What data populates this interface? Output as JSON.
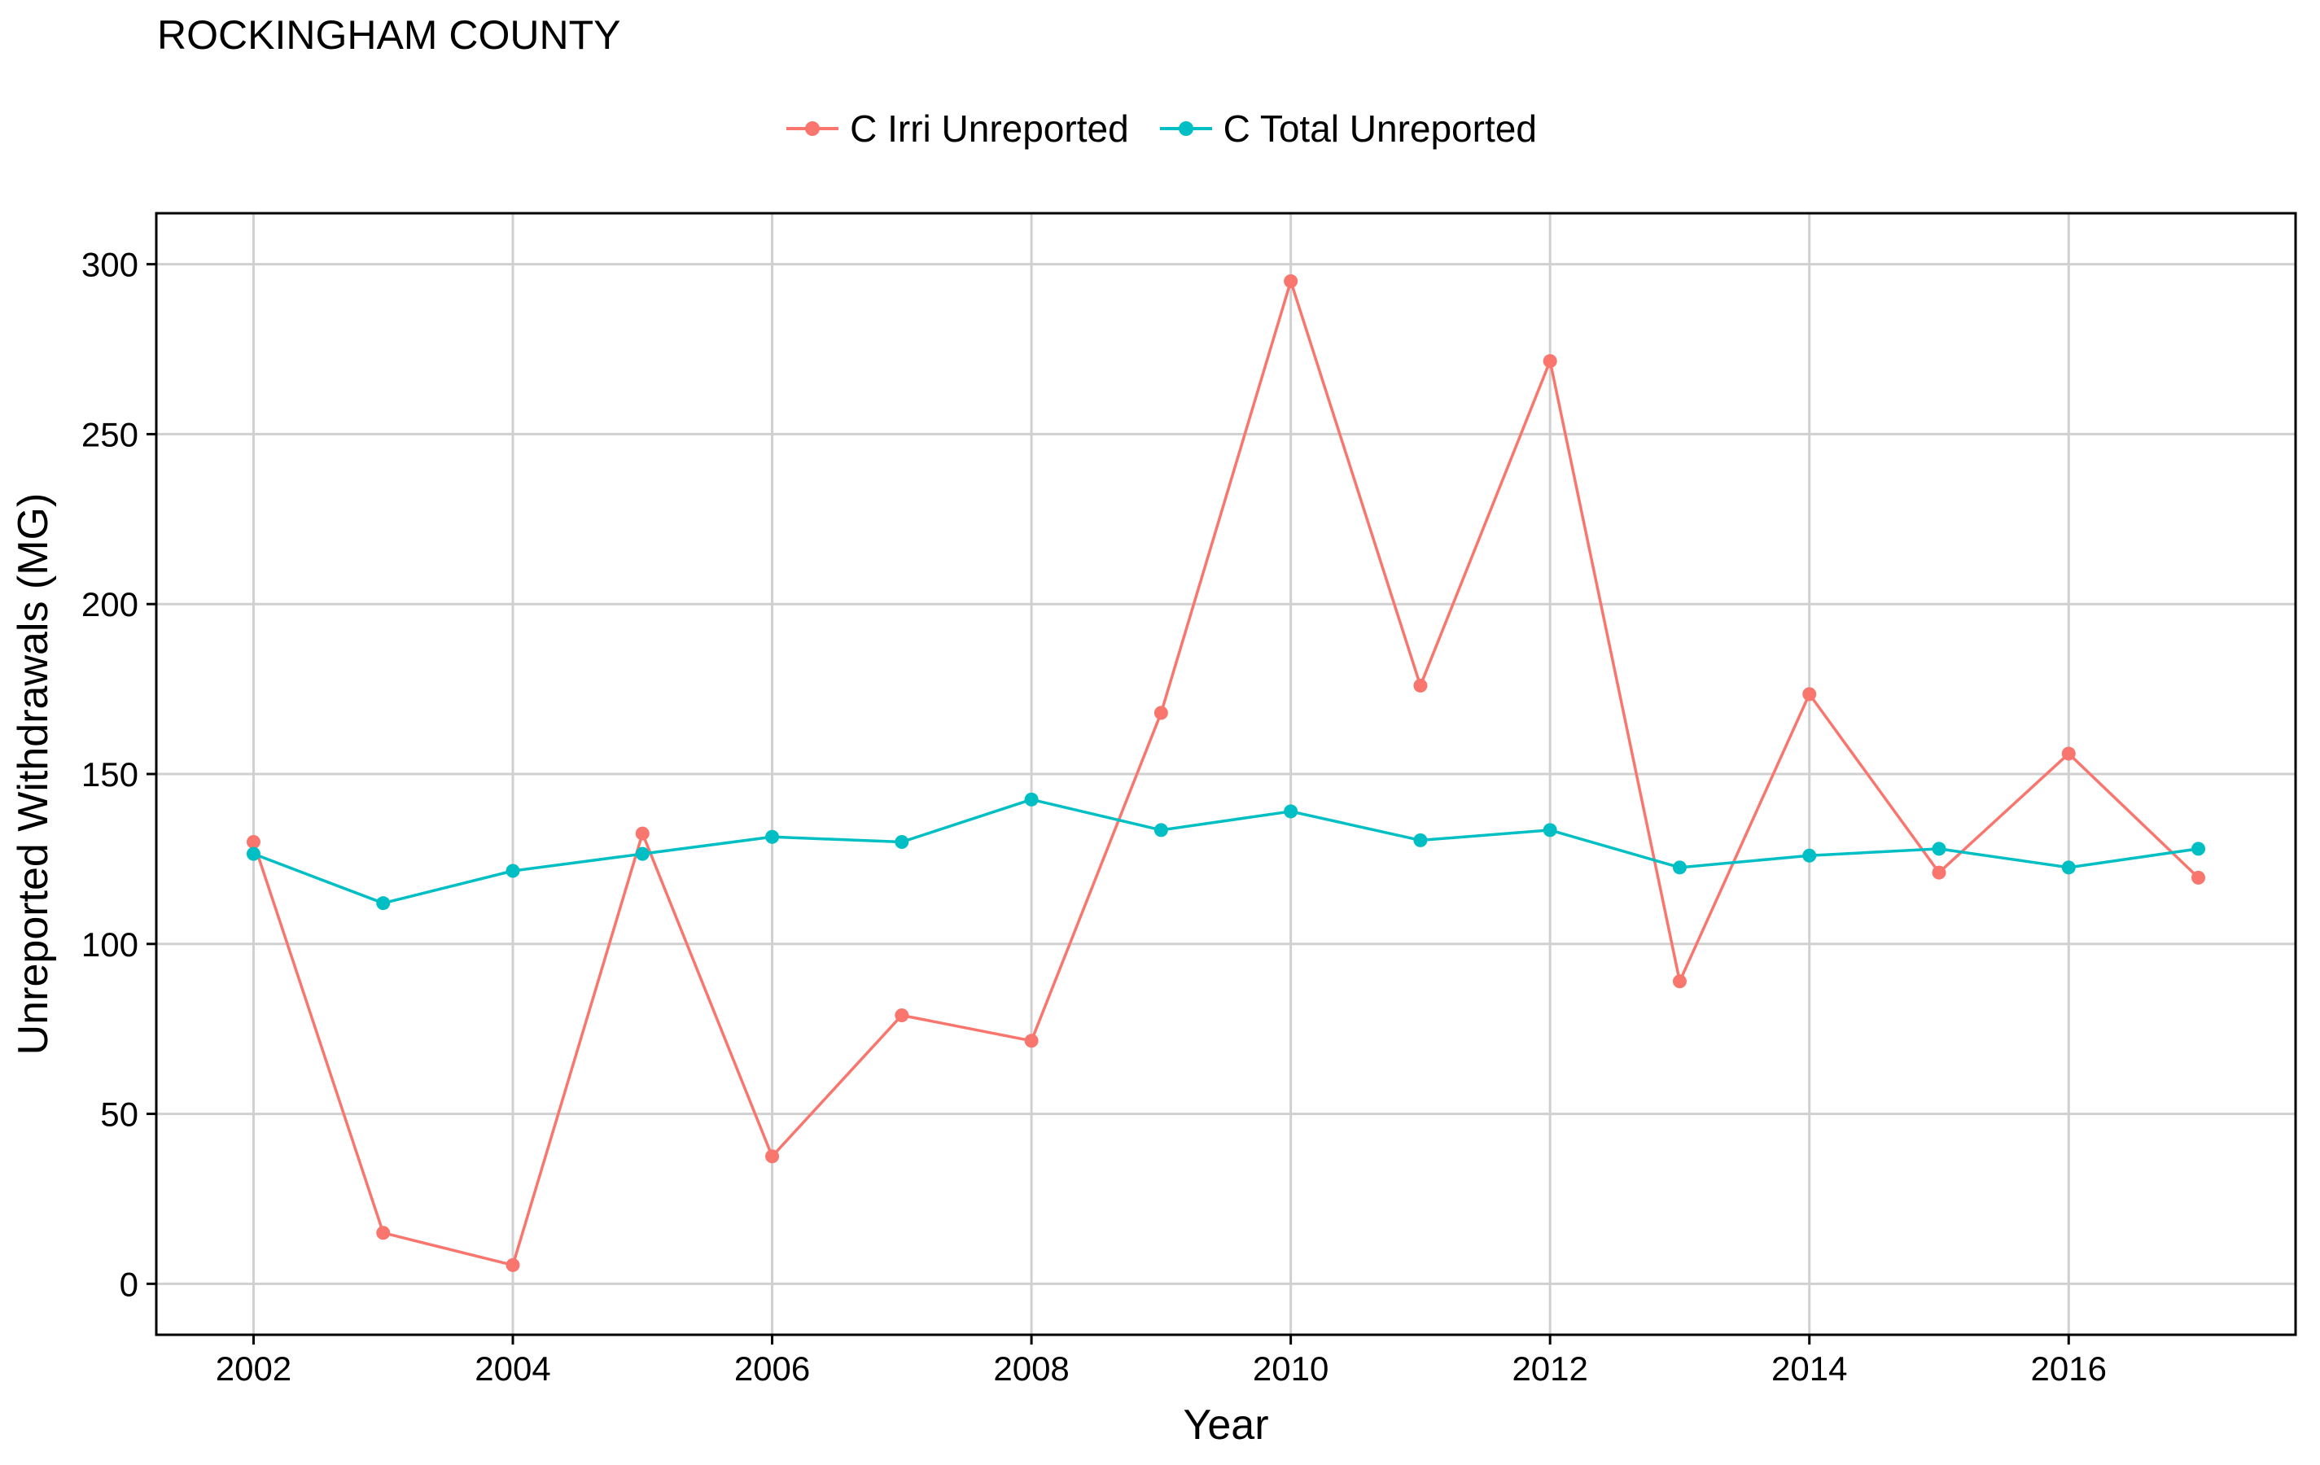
{
  "chart_data": {
    "type": "line",
    "title": "ROCKINGHAM COUNTY",
    "xlabel": "Year",
    "ylabel": "Unreported Withdrawals (MG)",
    "xlim": [
      2001.25,
      2017.75
    ],
    "ylim": [
      -15,
      315
    ],
    "x_ticks": [
      2002,
      2004,
      2006,
      2008,
      2010,
      2012,
      2014,
      2016
    ],
    "y_ticks": [
      0,
      50,
      100,
      150,
      200,
      250,
      300
    ],
    "grid": true,
    "legend_position": "top",
    "x": [
      2002,
      2003,
      2004,
      2005,
      2006,
      2007,
      2008,
      2009,
      2010,
      2011,
      2012,
      2013,
      2014,
      2015,
      2016,
      2017
    ],
    "series": [
      {
        "name": "C Irri Unreported",
        "color": "#F8766D",
        "values": [
          130,
          15,
          5.5,
          132.5,
          37.5,
          79,
          71.5,
          168,
          295,
          176,
          271.5,
          89,
          173.5,
          121,
          156,
          119.5
        ]
      },
      {
        "name": "C Total Unreported",
        "color": "#00BFC4",
        "values": [
          126.5,
          112,
          121.5,
          126.5,
          131.5,
          130,
          142.5,
          133.5,
          139,
          130.5,
          133.5,
          122.5,
          126,
          128,
          122.5,
          128
        ]
      }
    ]
  }
}
